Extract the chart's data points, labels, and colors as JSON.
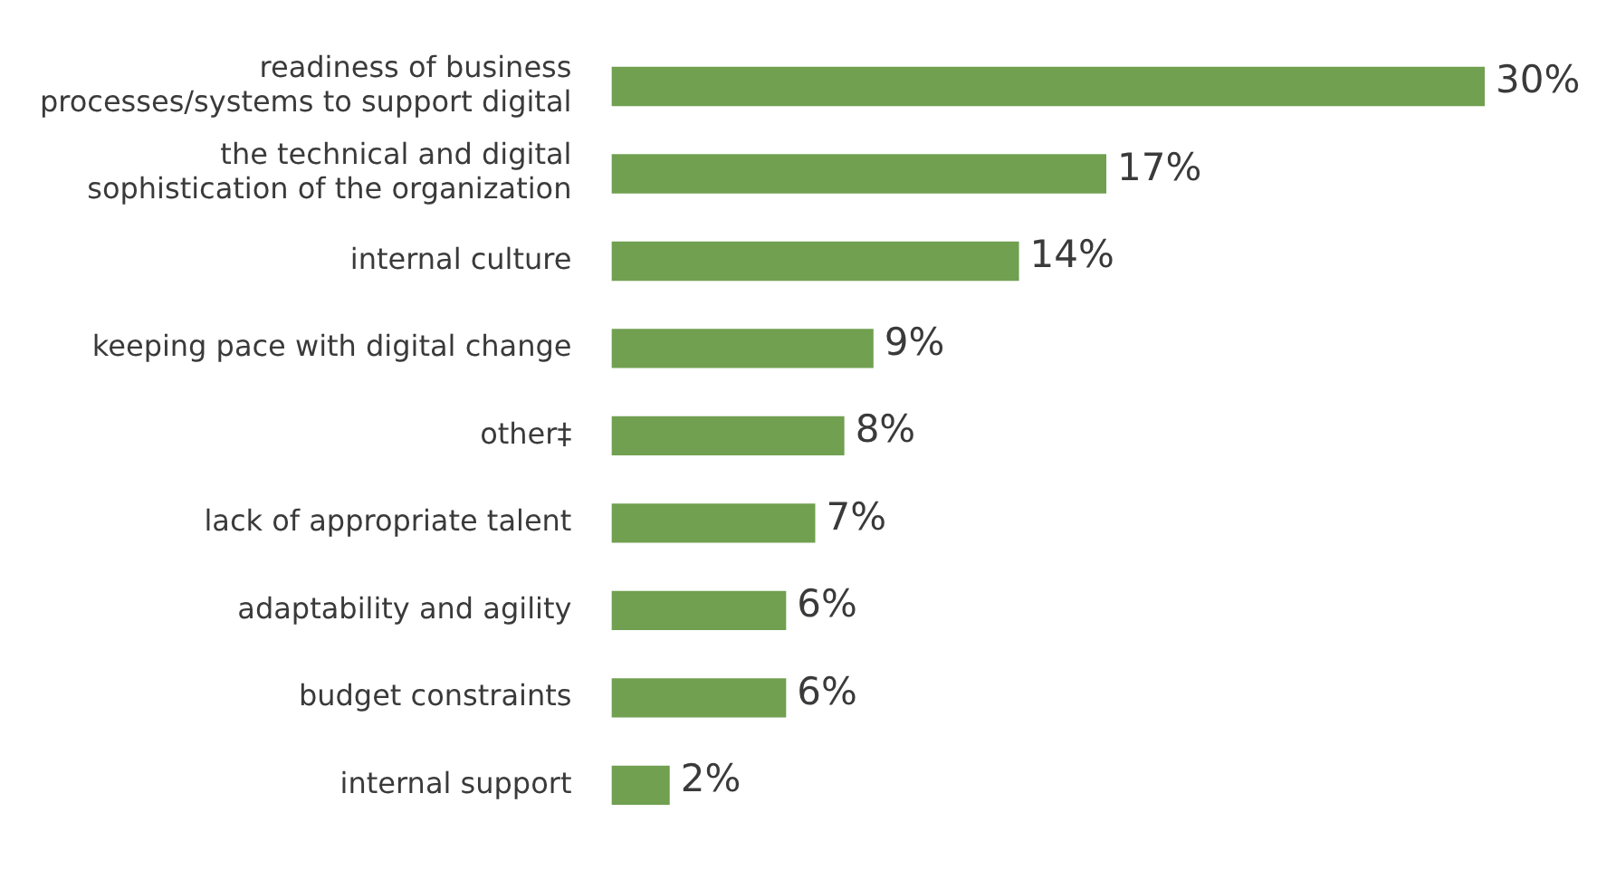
{
  "chart_data": {
    "type": "bar",
    "orientation": "horizontal",
    "categories": [
      "readiness of business processes/systems to support digital",
      "the technical and digital sophistication of the organization",
      "internal culture",
      "keeping pace with digital change",
      "other‡",
      "lack of appropriate talent",
      "adaptability and agility",
      "budget constraints",
      "internal support"
    ],
    "values": [
      30,
      17,
      14,
      9,
      8,
      7,
      6,
      6,
      2
    ],
    "value_labels": [
      "30%",
      "17%",
      "14%",
      "9%",
      "8%",
      "7%",
      "6%",
      "6%",
      "2%"
    ],
    "color": "#70a050"
  }
}
